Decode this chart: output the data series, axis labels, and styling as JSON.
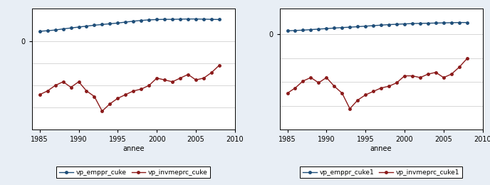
{
  "years": [
    1985,
    1986,
    1987,
    1988,
    1989,
    1990,
    1991,
    1992,
    1993,
    1994,
    1995,
    1996,
    1997,
    1998,
    1999,
    2000,
    2001,
    2002,
    2003,
    2004,
    2005,
    2006,
    2007,
    2008
  ],
  "blue_left": [
    0.055,
    0.058,
    0.062,
    0.068,
    0.073,
    0.078,
    0.083,
    0.088,
    0.092,
    0.096,
    0.1,
    0.105,
    0.11,
    0.114,
    0.117,
    0.119,
    0.12,
    0.12,
    0.121,
    0.122,
    0.122,
    0.121,
    0.12,
    0.119
  ],
  "red_left": [
    -0.29,
    -0.27,
    -0.24,
    -0.22,
    -0.25,
    -0.22,
    -0.27,
    -0.3,
    -0.38,
    -0.34,
    -0.31,
    -0.29,
    -0.27,
    -0.26,
    -0.24,
    -0.2,
    -0.21,
    -0.22,
    -0.2,
    -0.18,
    -0.21,
    -0.2,
    -0.17,
    -0.13
  ],
  "blue_right": [
    0.02,
    0.022,
    0.024,
    0.027,
    0.03,
    0.033,
    0.036,
    0.039,
    0.041,
    0.044,
    0.047,
    0.05,
    0.053,
    0.056,
    0.058,
    0.06,
    0.062,
    0.063,
    0.064,
    0.065,
    0.066,
    0.067,
    0.068,
    0.068
  ],
  "red_right": [
    -0.34,
    -0.31,
    -0.27,
    -0.25,
    -0.28,
    -0.25,
    -0.3,
    -0.34,
    -0.43,
    -0.38,
    -0.35,
    -0.33,
    -0.31,
    -0.3,
    -0.28,
    -0.24,
    -0.24,
    -0.25,
    -0.23,
    -0.22,
    -0.25,
    -0.23,
    -0.19,
    -0.14
  ],
  "xlim": [
    1984,
    2010
  ],
  "xticks": [
    1985,
    1990,
    1995,
    2000,
    2005,
    2010
  ],
  "xlabel": "annee",
  "legend_left": [
    "vp_emppr_cuke",
    "vp_invmeprc_cuke"
  ],
  "legend_right": [
    "vp_emppr_cuke1",
    "vp_invmeprc_cuke1"
  ],
  "blue_color": "#1F4E79",
  "red_color": "#8B1A1A",
  "bg_color": "#E8EEF5",
  "plot_bg": "#FFFFFF",
  "grid_color": "#C8C8C8",
  "ylim_left": [
    -0.48,
    0.18
  ],
  "ylim_right": [
    -0.55,
    0.15
  ]
}
